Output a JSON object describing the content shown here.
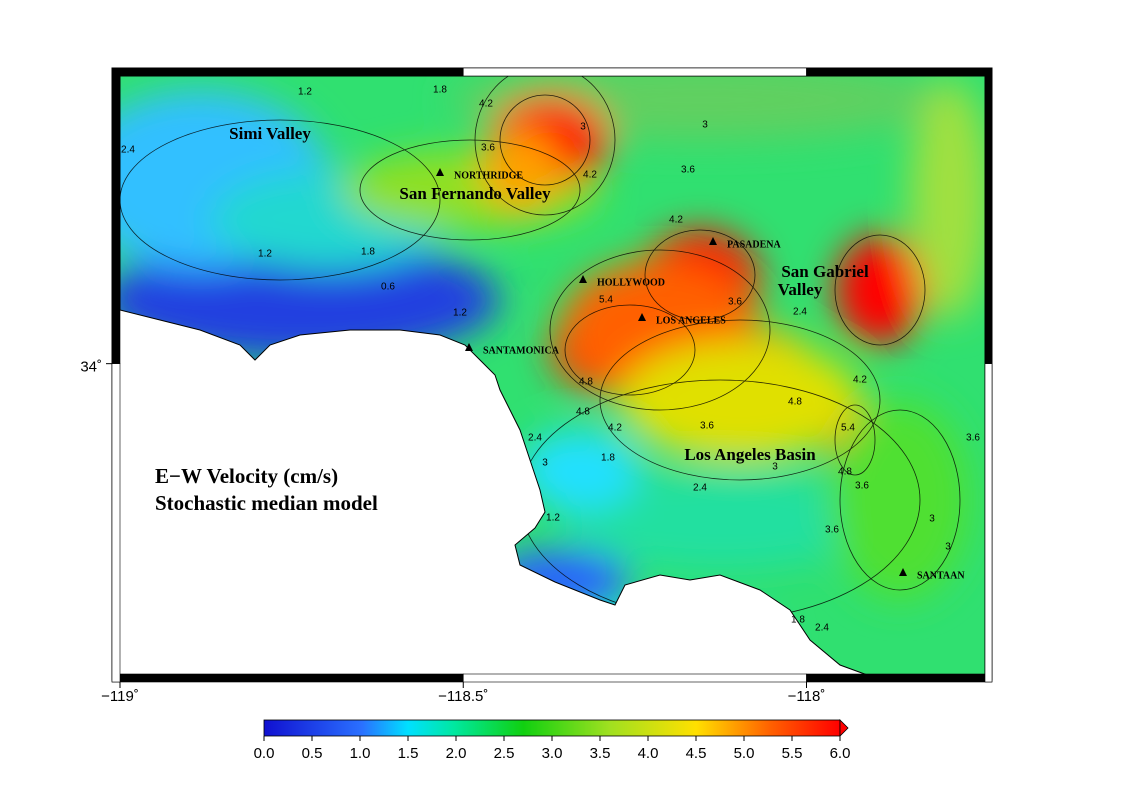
{
  "map": {
    "title_lines": [
      "E−W Velocity (cm/s)",
      "Stochastic median model"
    ],
    "xlim": [
      -119,
      -117.74
    ],
    "ylim": [
      33.62,
      34.35
    ],
    "xticks": [
      {
        "value": -119,
        "label": "−119˚"
      },
      {
        "value": -118.5,
        "label": "−118.5˚"
      },
      {
        "value": -118,
        "label": "−118˚"
      }
    ],
    "yticks": [
      {
        "value": 34,
        "label": "34˚"
      }
    ],
    "regions": [
      "Simi Valley",
      "San Fernando Valley",
      "San Gabriel",
      "Valley",
      "Los Angeles Basin"
    ],
    "cities": [
      "NORTHRIDGE",
      "HOLLYWOOD",
      "PASADENA",
      "LOS ANGELES",
      "SANTAMONICA",
      "SANTAAN"
    ],
    "contour_labels": [
      1.2,
      1.8,
      2.4,
      1.2,
      1.8,
      0.6,
      1.2,
      3.6,
      4.2,
      3,
      4.2,
      3.6,
      4.2,
      3,
      2.4,
      3.6,
      4.8,
      5.4,
      4.8,
      4.2,
      3.6,
      2.4,
      1.8,
      3,
      2.4,
      1.2,
      3,
      3.6,
      4.2,
      5.4,
      4.8,
      3.6,
      3,
      3.6,
      3,
      1.8,
      2.4,
      4.8
    ],
    "colorbar": {
      "range": [
        0,
        6
      ],
      "ticks": [
        {
          "value": 0,
          "label": "0.0"
        },
        {
          "value": 0.5,
          "label": "0.5"
        },
        {
          "value": 1,
          "label": "1.0"
        },
        {
          "value": 1.5,
          "label": "1.5"
        },
        {
          "value": 2,
          "label": "2.0"
        },
        {
          "value": 2.5,
          "label": "2.5"
        },
        {
          "value": 3,
          "label": "3.0"
        },
        {
          "value": 3.5,
          "label": "3.5"
        },
        {
          "value": 4,
          "label": "4.0"
        },
        {
          "value": 4.5,
          "label": "4.5"
        },
        {
          "value": 5,
          "label": "5.0"
        },
        {
          "value": 5.5,
          "label": "5.5"
        },
        {
          "value": 6,
          "label": "6.0"
        }
      ]
    }
  }
}
